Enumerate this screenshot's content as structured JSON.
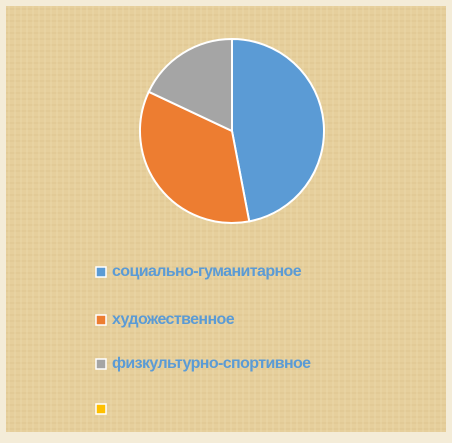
{
  "chart_data": {
    "type": "pie",
    "categories": [
      "социально-гуманитарное",
      "художественное",
      "физкультурно-спортивное",
      null
    ],
    "values": [
      47,
      35,
      18,
      0
    ],
    "colors": [
      "#5b9bd5",
      "#ed7d31",
      "#a5a5a5",
      "#ffc000"
    ],
    "legend": "bottom"
  }
}
